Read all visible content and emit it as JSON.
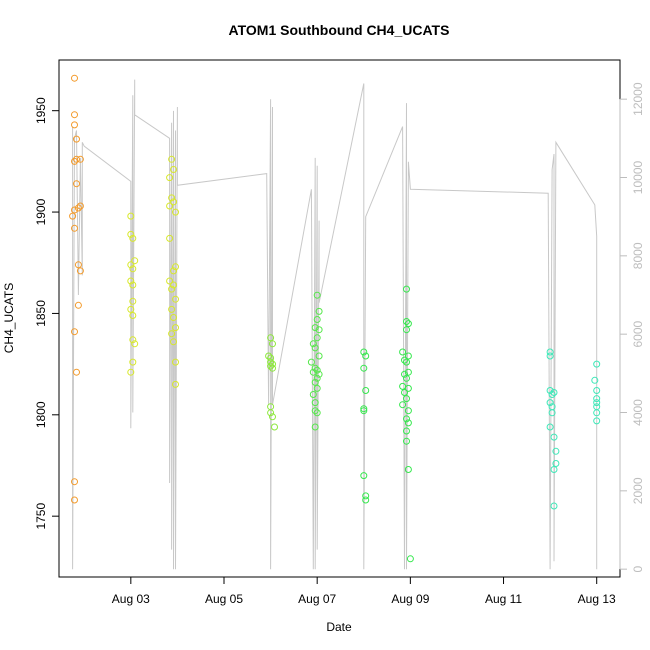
{
  "chart_data": {
    "type": "scatter",
    "title": "ATOM1 Southbound CH4_UCATS",
    "xlabel": "Date",
    "ylabel": "CH4_UCATS",
    "xlim": [
      "2016-08-01T11:00",
      "2016-08-13T12:00"
    ],
    "ylim": [
      1720,
      1975
    ],
    "y2lim": [
      -200,
      13000
    ],
    "x_ticks": [
      {
        "date": "2016-08-03",
        "label": "Aug 03"
      },
      {
        "date": "2016-08-05",
        "label": "Aug 05"
      },
      {
        "date": "2016-08-07",
        "label": "Aug 07"
      },
      {
        "date": "2016-08-09",
        "label": "Aug 09"
      },
      {
        "date": "2016-08-11",
        "label": "Aug 11"
      },
      {
        "date": "2016-08-13",
        "label": "Aug 13"
      }
    ],
    "y_ticks": [
      1750,
      1800,
      1850,
      1900,
      1950
    ],
    "y2_ticks": [
      0,
      2000,
      4000,
      6000,
      8000,
      10000,
      12000
    ],
    "grid": false,
    "series": [
      {
        "color": "#f39b2c",
        "points": [
          [
            "2016-08-01T19:00",
            1966
          ],
          [
            "2016-08-01T19:00",
            1948
          ],
          [
            "2016-08-01T19:00",
            1943
          ],
          [
            "2016-08-01T20:00",
            1936
          ],
          [
            "2016-08-01T20:00",
            1926
          ],
          [
            "2016-08-01T19:00",
            1925
          ],
          [
            "2016-08-01T22:00",
            1926
          ],
          [
            "2016-08-01T20:00",
            1914
          ],
          [
            "2016-08-01T22:00",
            1903
          ],
          [
            "2016-08-01T21:00",
            1902
          ],
          [
            "2016-08-01T19:00",
            1901
          ],
          [
            "2016-08-01T18:00",
            1898
          ],
          [
            "2016-08-01T19:00",
            1892
          ],
          [
            "2016-08-01T21:00",
            1874
          ],
          [
            "2016-08-01T22:00",
            1871
          ],
          [
            "2016-08-01T21:00",
            1854
          ],
          [
            "2016-08-01T19:00",
            1841
          ],
          [
            "2016-08-01T20:00",
            1821
          ],
          [
            "2016-08-01T19:00",
            1767
          ],
          [
            "2016-08-01T19:00",
            1758
          ]
        ]
      },
      {
        "color": "#d8e82c",
        "points": [
          [
            "2016-08-03T00:00",
            1898
          ],
          [
            "2016-08-03T00:00",
            1889
          ],
          [
            "2016-08-03T01:00",
            1887
          ],
          [
            "2016-08-03T02:00",
            1876
          ],
          [
            "2016-08-03T00:00",
            1874
          ],
          [
            "2016-08-03T01:00",
            1872
          ],
          [
            "2016-08-03T00:00",
            1866
          ],
          [
            "2016-08-03T01:00",
            1864
          ],
          [
            "2016-08-03T01:00",
            1856
          ],
          [
            "2016-08-03T00:00",
            1852
          ],
          [
            "2016-08-03T01:00",
            1849
          ],
          [
            "2016-08-03T01:00",
            1837
          ],
          [
            "2016-08-03T02:00",
            1835
          ],
          [
            "2016-08-03T01:00",
            1826
          ],
          [
            "2016-08-03T00:00",
            1821
          ],
          [
            "2016-08-03T21:00",
            1926
          ],
          [
            "2016-08-03T22:00",
            1921
          ],
          [
            "2016-08-03T20:00",
            1917
          ],
          [
            "2016-08-03T21:00",
            1907
          ],
          [
            "2016-08-03T22:00",
            1905
          ],
          [
            "2016-08-03T20:00",
            1903
          ],
          [
            "2016-08-03T23:00",
            1900
          ],
          [
            "2016-08-03T20:00",
            1887
          ],
          [
            "2016-08-03T23:00",
            1873
          ],
          [
            "2016-08-03T22:00",
            1871
          ],
          [
            "2016-08-03T20:00",
            1866
          ],
          [
            "2016-08-03T22:00",
            1864
          ],
          [
            "2016-08-03T21:00",
            1862
          ],
          [
            "2016-08-03T23:00",
            1857
          ],
          [
            "2016-08-03T21:00",
            1852
          ],
          [
            "2016-08-03T22:00",
            1848
          ],
          [
            "2016-08-03T23:00",
            1843
          ],
          [
            "2016-08-03T21:00",
            1840
          ],
          [
            "2016-08-03T22:00",
            1836
          ],
          [
            "2016-08-03T23:00",
            1826
          ],
          [
            "2016-08-03T23:00",
            1815
          ]
        ]
      },
      {
        "color": "#8de83c",
        "points": [
          [
            "2016-08-06T00:00",
            1838
          ],
          [
            "2016-08-06T01:00",
            1835
          ],
          [
            "2016-08-05T23:00",
            1829
          ],
          [
            "2016-08-06T00:00",
            1828
          ],
          [
            "2016-08-06T00:00",
            1826
          ],
          [
            "2016-08-06T01:00",
            1825
          ],
          [
            "2016-08-06T00:00",
            1824
          ],
          [
            "2016-08-06T01:00",
            1823
          ],
          [
            "2016-08-06T00:00",
            1804
          ],
          [
            "2016-08-06T00:00",
            1801
          ],
          [
            "2016-08-06T01:00",
            1799
          ],
          [
            "2016-08-06T02:00",
            1794
          ]
        ]
      },
      {
        "color": "#55e84a",
        "points": [
          [
            "2016-08-07T00:00",
            1859
          ],
          [
            "2016-08-07T01:00",
            1851
          ],
          [
            "2016-08-07T00:00",
            1847
          ],
          [
            "2016-08-06T23:00",
            1843
          ],
          [
            "2016-08-07T01:00",
            1842
          ],
          [
            "2016-08-07T00:00",
            1838
          ],
          [
            "2016-08-06T22:00",
            1835
          ],
          [
            "2016-08-06T23:00",
            1833
          ],
          [
            "2016-08-07T01:00",
            1829
          ],
          [
            "2016-08-06T21:00",
            1826
          ],
          [
            "2016-08-06T23:00",
            1823
          ],
          [
            "2016-08-07T00:00",
            1822
          ],
          [
            "2016-08-06T22:00",
            1821
          ],
          [
            "2016-08-07T01:00",
            1820
          ],
          [
            "2016-08-07T00:00",
            1818
          ],
          [
            "2016-08-06T23:00",
            1816
          ],
          [
            "2016-08-07T00:00",
            1813
          ],
          [
            "2016-08-06T22:00",
            1810
          ],
          [
            "2016-08-06T23:00",
            1806
          ],
          [
            "2016-08-06T23:00",
            1802
          ],
          [
            "2016-08-07T00:00",
            1801
          ],
          [
            "2016-08-06T23:00",
            1794
          ]
        ]
      },
      {
        "color": "#36e84e",
        "points": [
          [
            "2016-08-08T00:00",
            1831
          ],
          [
            "2016-08-08T01:00",
            1829
          ],
          [
            "2016-08-08T00:00",
            1823
          ],
          [
            "2016-08-08T01:00",
            1812
          ],
          [
            "2016-08-08T00:00",
            1803
          ],
          [
            "2016-08-08T00:00",
            1802
          ],
          [
            "2016-08-08T00:00",
            1770
          ],
          [
            "2016-08-08T01:00",
            1760
          ],
          [
            "2016-08-08T01:00",
            1758
          ],
          [
            "2016-08-08T22:00",
            1862
          ],
          [
            "2016-08-08T22:00",
            1846
          ],
          [
            "2016-08-08T23:00",
            1845
          ],
          [
            "2016-08-08T22:00",
            1842
          ],
          [
            "2016-08-08T20:00",
            1831
          ],
          [
            "2016-08-08T23:00",
            1829
          ],
          [
            "2016-08-08T21:00",
            1827
          ],
          [
            "2016-08-08T22:00",
            1826
          ],
          [
            "2016-08-08T23:00",
            1821
          ],
          [
            "2016-08-08T21:00",
            1820
          ],
          [
            "2016-08-08T22:00",
            1818
          ],
          [
            "2016-08-08T20:00",
            1814
          ],
          [
            "2016-08-08T23:00",
            1813
          ],
          [
            "2016-08-08T21:00",
            1811
          ],
          [
            "2016-08-08T22:00",
            1808
          ],
          [
            "2016-08-08T20:00",
            1805
          ],
          [
            "2016-08-08T23:00",
            1802
          ],
          [
            "2016-08-08T22:00",
            1798
          ],
          [
            "2016-08-08T23:00",
            1796
          ],
          [
            "2016-08-08T22:00",
            1792
          ],
          [
            "2016-08-08T22:00",
            1787
          ],
          [
            "2016-08-08T23:00",
            1773
          ],
          [
            "2016-08-09T00:00",
            1729
          ]
        ]
      },
      {
        "color": "#3ee8b8",
        "points": [
          [
            "2016-08-12T00:00",
            1831
          ],
          [
            "2016-08-12T00:00",
            1829
          ],
          [
            "2016-08-12T00:00",
            1812
          ],
          [
            "2016-08-12T01:00",
            1810
          ],
          [
            "2016-08-12T02:00",
            1811
          ],
          [
            "2016-08-12T00:00",
            1806
          ],
          [
            "2016-08-12T01:00",
            1804
          ],
          [
            "2016-08-12T01:00",
            1801
          ],
          [
            "2016-08-12T00:00",
            1794
          ],
          [
            "2016-08-12T02:00",
            1789
          ],
          [
            "2016-08-12T03:00",
            1782
          ],
          [
            "2016-08-12T03:00",
            1776
          ],
          [
            "2016-08-12T02:00",
            1773
          ],
          [
            "2016-08-12T02:00",
            1755
          ],
          [
            "2016-08-13T00:00",
            1825
          ],
          [
            "2016-08-12T23:00",
            1817
          ],
          [
            "2016-08-13T00:00",
            1812
          ],
          [
            "2016-08-13T00:00",
            1808
          ],
          [
            "2016-08-13T00:00",
            1806
          ],
          [
            "2016-08-13T00:00",
            1804
          ],
          [
            "2016-08-13T00:00",
            1801
          ],
          [
            "2016-08-13T00:00",
            1797
          ]
        ]
      }
    ],
    "secondary_series": {
      "color": "#c8c8c8",
      "axis": "right",
      "points": [
        [
          "2016-08-01T18:00",
          11300
        ],
        [
          "2016-08-01T18:00",
          0
        ],
        [
          "2016-08-01T19:00",
          11000
        ],
        [
          "2016-08-01T20:00",
          11200
        ],
        [
          "2016-08-01T21:00",
          7000
        ],
        [
          "2016-08-01T22:00",
          10500
        ],
        [
          "2016-08-01T23:00",
          7500
        ],
        [
          "2016-08-01T23:00",
          10900
        ],
        [
          "2016-08-02T00:00",
          10800
        ],
        [
          "2016-08-03T00:00",
          9900
        ],
        [
          "2016-08-03T00:00",
          3600
        ],
        [
          "2016-08-03T01:00",
          12100
        ],
        [
          "2016-08-03T01:00",
          4000
        ],
        [
          "2016-08-03T02:00",
          12500
        ],
        [
          "2016-08-03T02:00",
          11600
        ],
        [
          "2016-08-03T20:00",
          11000
        ],
        [
          "2016-08-03T20:00",
          2200
        ],
        [
          "2016-08-03T21:00",
          11400
        ],
        [
          "2016-08-03T21:00",
          500
        ],
        [
          "2016-08-03T22:00",
          11700
        ],
        [
          "2016-08-03T22:00",
          0
        ],
        [
          "2016-08-03T23:00",
          11200
        ],
        [
          "2016-08-03T23:00",
          0
        ],
        [
          "2016-08-04T00:00",
          11800
        ],
        [
          "2016-08-04T00:00",
          9800
        ],
        [
          "2016-08-05T22:00",
          10100
        ],
        [
          "2016-08-05T23:00",
          4200
        ],
        [
          "2016-08-06T00:00",
          12000
        ],
        [
          "2016-08-06T00:00",
          0
        ],
        [
          "2016-08-06T01:00",
          11800
        ],
        [
          "2016-08-06T01:00",
          4200
        ],
        [
          "2016-08-06T21:00",
          9700
        ],
        [
          "2016-08-06T22:00",
          0
        ],
        [
          "2016-08-06T23:00",
          10500
        ],
        [
          "2016-08-06T23:00",
          0
        ],
        [
          "2016-08-07T00:00",
          10300
        ],
        [
          "2016-08-07T00:00",
          500
        ],
        [
          "2016-08-07T01:00",
          8900
        ],
        [
          "2016-08-07T01:00",
          6800
        ],
        [
          "2016-08-08T00:00",
          12400
        ],
        [
          "2016-08-08T00:00",
          0
        ],
        [
          "2016-08-08T01:00",
          9000
        ],
        [
          "2016-08-08T20:00",
          11300
        ],
        [
          "2016-08-08T21:00",
          0
        ],
        [
          "2016-08-08T22:00",
          11900
        ],
        [
          "2016-08-08T22:00",
          0
        ],
        [
          "2016-08-08T23:00",
          10400
        ],
        [
          "2016-08-09T00:00",
          9700
        ],
        [
          "2016-08-11T23:00",
          9600
        ],
        [
          "2016-08-12T00:00",
          0
        ],
        [
          "2016-08-12T01:00",
          10200
        ],
        [
          "2016-08-12T02:00",
          10600
        ],
        [
          "2016-08-12T02:00",
          200
        ],
        [
          "2016-08-12T03:00",
          10900
        ],
        [
          "2016-08-12T23:00",
          9300
        ],
        [
          "2016-08-13T00:00",
          8500
        ],
        [
          "2016-08-13T00:00",
          3000
        ],
        [
          "2016-08-13T00:00",
          0
        ]
      ]
    }
  }
}
